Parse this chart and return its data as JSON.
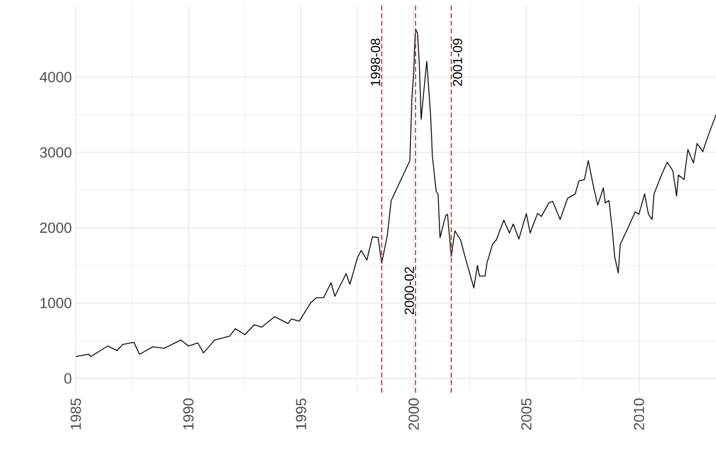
{
  "chart_data": {
    "type": "line",
    "x": [
      "1985-01",
      "1985-08",
      "1985-09",
      "1986-06",
      "1986-11",
      "1987-02",
      "1987-08",
      "1987-11",
      "1988-06",
      "1988-12",
      "1989-09",
      "1990-01",
      "1990-06",
      "1990-09",
      "1991-03",
      "1991-11",
      "1992-02",
      "1992-07",
      "1992-12",
      "1993-04",
      "1993-11",
      "1994-06",
      "1994-08",
      "1994-12",
      "1995-06",
      "1995-09",
      "1996-01",
      "1996-05",
      "1996-07",
      "1997-01",
      "1997-03",
      "1997-07",
      "1997-09",
      "1997-12",
      "1998-03",
      "1998-06",
      "1998-08",
      "1998-11",
      "1999-01",
      "1999-04",
      "1999-08",
      "1999-11",
      "1999-12",
      "2000-01",
      "2000-02",
      "2000-03",
      "2000-04",
      "2000-05",
      "2000-07",
      "2000-08",
      "2000-10",
      "2000-11",
      "2001-01",
      "2001-02",
      "2001-03",
      "2001-06",
      "2001-07",
      "2001-09",
      "2001-11",
      "2002-02",
      "2002-05",
      "2002-09",
      "2002-11",
      "2002-12",
      "2003-03",
      "2003-04",
      "2003-07",
      "2003-09",
      "2004-01",
      "2004-04",
      "2004-06",
      "2004-09",
      "2005-01",
      "2005-03",
      "2005-07",
      "2005-09",
      "2006-01",
      "2006-03",
      "2006-07",
      "2006-11",
      "2007-03",
      "2007-05",
      "2007-08",
      "2007-10",
      "2008-01",
      "2008-03",
      "2008-06",
      "2008-07",
      "2008-09",
      "2008-11",
      "2008-12",
      "2009-02",
      "2009-03",
      "2009-07",
      "2009-11",
      "2010-01",
      "2010-04",
      "2010-06",
      "2010-08",
      "2010-09",
      "2011-01",
      "2011-04",
      "2011-07",
      "2011-09",
      "2011-10",
      "2012-01",
      "2012-03",
      "2012-06",
      "2012-08",
      "2012-11",
      "2013-02",
      "2013-06"
    ],
    "series": [
      {
        "color": "#000000",
        "values": [
          290,
          320,
          290,
          430,
          370,
          450,
          480,
          320,
          420,
          400,
          510,
          430,
          470,
          340,
          510,
          560,
          660,
          580,
          710,
          680,
          820,
          730,
          790,
          760,
          1000,
          1070,
          1070,
          1270,
          1090,
          1390,
          1250,
          1600,
          1700,
          1570,
          1880,
          1870,
          1530,
          1900,
          2360,
          2520,
          2730,
          2890,
          3720,
          4060,
          4640,
          4580,
          4180,
          3440,
          3970,
          4210,
          3500,
          2950,
          2480,
          2450,
          1870,
          2160,
          2180,
          1620,
          1960,
          1840,
          1560,
          1200,
          1500,
          1360,
          1360,
          1530,
          1780,
          1840,
          2100,
          1930,
          2050,
          1850,
          2190,
          1930,
          2190,
          2150,
          2330,
          2350,
          2110,
          2390,
          2450,
          2620,
          2640,
          2890,
          2520,
          2300,
          2530,
          2330,
          2360,
          1930,
          1620,
          1400,
          1780,
          1990,
          2210,
          2180,
          2450,
          2180,
          2110,
          2450,
          2700,
          2870,
          2760,
          2420,
          2700,
          2640,
          3040,
          2860,
          3120,
          3010,
          3230,
          3500
        ]
      }
    ],
    "xlim": [
      "1985-01",
      "2013-06"
    ],
    "ylim": [
      -190,
      4950
    ],
    "xticks": [
      "1985",
      "1990",
      "1995",
      "2000",
      "2005",
      "2010"
    ],
    "yticks": [
      0,
      1000,
      2000,
      3000,
      4000
    ],
    "grid": true,
    "marker": "none",
    "line_style": "solid",
    "ref_lines": [
      {
        "axis": "x",
        "value": "1998-08",
        "label": "1998-08",
        "color": "#ff0000",
        "line_style": "dashed"
      },
      {
        "axis": "x",
        "value": "2000-02",
        "label": "2000-02",
        "color": "#ff0000",
        "line_style": "dashed"
      },
      {
        "axis": "x",
        "value": "2001-09",
        "label": "2001-09",
        "color": "#ff0000",
        "line_style": "dashed"
      }
    ]
  }
}
